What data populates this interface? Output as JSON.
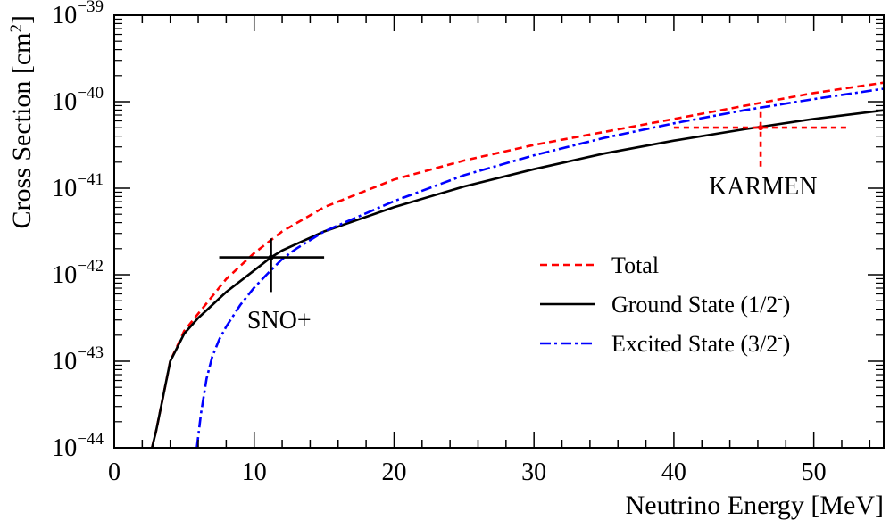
{
  "chart_data": {
    "type": "line",
    "title": "",
    "xlabel": "Neutrino Energy [MeV]",
    "ylabel": "Cross Section [cm²]",
    "ylabel_main": "Cross Section [cm",
    "ylabel_sup": "2",
    "ylabel_close": "]",
    "xlim": [
      0,
      55
    ],
    "ylim_log10": [
      -44,
      -39
    ],
    "yscale": "log",
    "x_ticks": [
      {
        "value": 0,
        "label": "0"
      },
      {
        "value": 10,
        "label": "10"
      },
      {
        "value": 20,
        "label": "20"
      },
      {
        "value": 30,
        "label": "30"
      },
      {
        "value": 40,
        "label": "40"
      },
      {
        "value": 50,
        "label": "50"
      }
    ],
    "y_ticks": [
      {
        "exp": -44,
        "base": "10",
        "sup": "−44"
      },
      {
        "exp": -43,
        "base": "10",
        "sup": "−43"
      },
      {
        "exp": -42,
        "base": "10",
        "sup": "−42"
      },
      {
        "exp": -41,
        "base": "10",
        "sup": "−41"
      },
      {
        "exp": -40,
        "base": "10",
        "sup": "−40"
      },
      {
        "exp": -39,
        "base": "10",
        "sup": "−39"
      }
    ],
    "series": [
      {
        "name": "Total",
        "legend_main": "Total",
        "legend_sup": "",
        "legend_close": "",
        "color": "#ff0000",
        "dash": "8,5",
        "x": [
          2.7,
          3,
          3.5,
          4,
          5,
          6,
          7,
          8,
          10,
          12,
          15,
          20,
          25,
          30,
          35,
          40,
          45,
          50,
          55
        ],
        "log10_y": [
          -44.0,
          -43.8,
          -43.4,
          -43.0,
          -42.65,
          -42.45,
          -42.25,
          -42.05,
          -41.75,
          -41.5,
          -41.22,
          -40.9,
          -40.68,
          -40.5,
          -40.35,
          -40.2,
          -40.05,
          -39.9,
          -39.78
        ]
      },
      {
        "name": "Ground State (1/2-)",
        "legend_main": "Ground State (1/2",
        "legend_sup": "-",
        "legend_close": ")",
        "color": "#000000",
        "dash": "",
        "x": [
          2.7,
          3,
          3.5,
          4,
          5,
          6,
          7,
          8,
          10,
          11.2,
          12,
          15,
          20,
          25,
          30,
          35,
          40,
          45,
          50,
          55
        ],
        "log10_y": [
          -44.0,
          -43.8,
          -43.4,
          -43.0,
          -42.68,
          -42.5,
          -42.35,
          -42.2,
          -41.95,
          -41.8,
          -41.72,
          -41.5,
          -41.22,
          -40.98,
          -40.78,
          -40.6,
          -40.45,
          -40.32,
          -40.2,
          -40.1
        ]
      },
      {
        "name": "Excited State (3/2-)",
        "legend_main": "Excited State (3/2",
        "legend_sup": "-",
        "legend_close": ")",
        "color": "#0000ff",
        "dash": "12,4,3,4",
        "x": [
          5.9,
          6.2,
          6.6,
          7,
          7.5,
          8,
          9,
          10,
          11,
          12,
          13,
          15,
          20,
          25,
          30,
          35,
          40,
          45,
          50,
          55
        ],
        "log10_y": [
          -44.0,
          -43.6,
          -43.2,
          -42.95,
          -42.75,
          -42.6,
          -42.35,
          -42.15,
          -41.98,
          -41.82,
          -41.7,
          -41.5,
          -41.15,
          -40.85,
          -40.62,
          -40.42,
          -40.25,
          -40.1,
          -39.97,
          -39.85
        ]
      }
    ],
    "measurements": [
      {
        "name": "SNO+",
        "label": "SNO+",
        "color": "#000000",
        "dash": "",
        "x": 11.2,
        "xerr": [
          7.5,
          15.0
        ],
        "log10_y": -41.8,
        "log10_yerr": [
          -42.2,
          -41.58
        ],
        "label_x": 9.5,
        "label_log10_y": -42.62
      },
      {
        "name": "KARMEN",
        "label": "KARMEN",
        "color": "#ff0000",
        "dash": "6,5",
        "x": 46.2,
        "xerr": [
          40.0,
          52.5
        ],
        "log10_y": -40.3,
        "log10_yerr": [
          -40.75,
          -40.1
        ],
        "label_x": 42.5,
        "label_log10_y": -41.07
      }
    ],
    "legend": {
      "placement": "bottom-right"
    }
  }
}
